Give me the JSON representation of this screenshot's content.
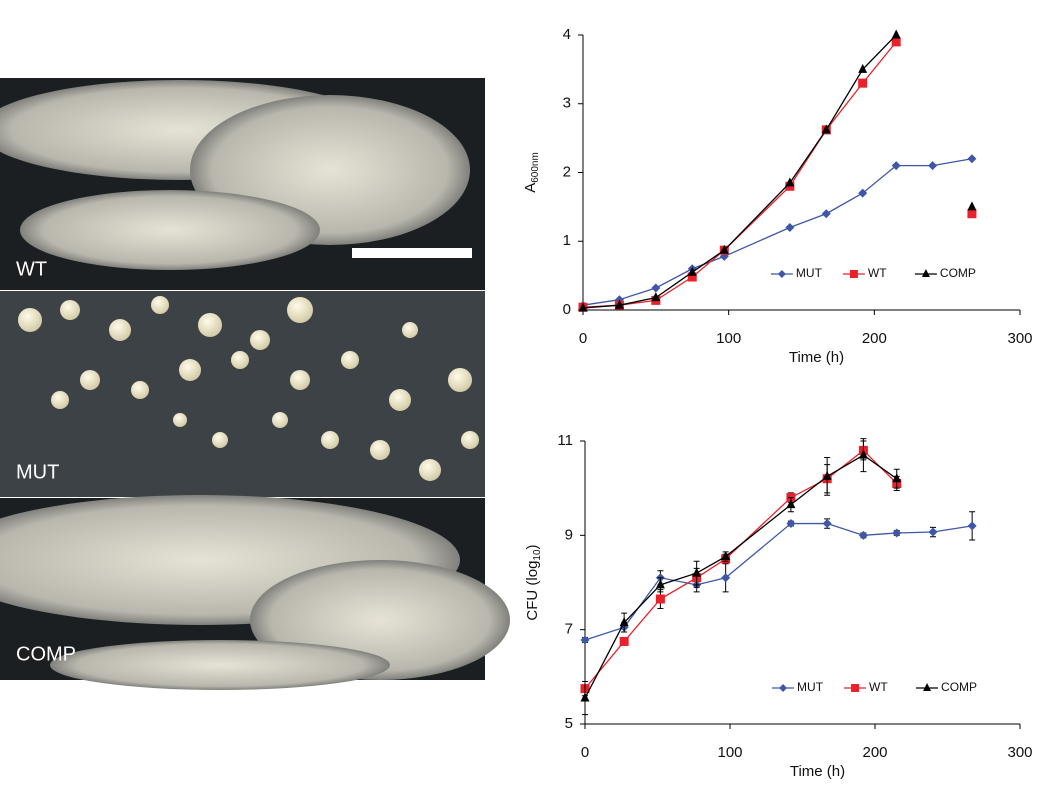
{
  "panel_labels": [
    "WT",
    "MUT",
    "COMP"
  ],
  "chart_data": [
    {
      "type": "line",
      "x_label": "Time (h)",
      "y_label_parts": [
        "A",
        "600nm"
      ],
      "x": [
        0,
        25,
        50,
        75,
        97,
        142,
        167,
        192,
        215,
        240,
        267
      ],
      "xlim": [
        0,
        300
      ],
      "xticks": [
        0,
        100,
        200,
        300
      ],
      "ylim": [
        0,
        4
      ],
      "yticks": [
        0,
        1,
        2,
        3,
        4
      ],
      "grid": false,
      "legend": "lower right",
      "series": [
        {
          "name": "MUT",
          "color": "#3f57a8",
          "marker": "diamond",
          "values": [
            0.07,
            0.15,
            0.32,
            0.6,
            0.78,
            1.2,
            1.4,
            1.7,
            2.1,
            2.1,
            2.2
          ]
        },
        {
          "name": "WT",
          "color": "#e8212b",
          "marker": "square",
          "values": [
            0.04,
            0.07,
            0.14,
            0.48,
            0.87,
            1.8,
            2.62,
            3.3,
            3.9,
            null,
            1.4
          ]
        },
        {
          "name": "COMP",
          "color": "#000000",
          "marker": "triangle",
          "values": [
            0.03,
            0.07,
            0.18,
            0.55,
            0.87,
            1.85,
            2.62,
            3.5,
            4.0,
            null,
            1.5
          ]
        }
      ]
    },
    {
      "type": "line",
      "x_label": "Time (h)",
      "y_label_parts": [
        "CFU (log",
        "10",
        ")"
      ],
      "x": [
        0,
        27,
        52,
        77,
        97,
        142,
        167,
        192,
        215,
        240,
        267
      ],
      "xlim": [
        0,
        300
      ],
      "xticks": [
        0,
        100,
        200,
        300
      ],
      "ylim": [
        5,
        11
      ],
      "yticks": [
        5,
        7,
        9,
        11
      ],
      "grid": false,
      "legend": "lower right",
      "series": [
        {
          "name": "MUT",
          "color": "#3f57a8",
          "marker": "diamond",
          "values": [
            6.78,
            7.05,
            8.1,
            7.95,
            8.1,
            9.25,
            9.25,
            9.0,
            9.05,
            9.07,
            9.2
          ],
          "errors": [
            0.05,
            0.1,
            0.15,
            0.15,
            0.3,
            0.05,
            0.1,
            0.05,
            0.05,
            0.1,
            0.3
          ]
        },
        {
          "name": "WT",
          "color": "#e8212b",
          "marker": "square",
          "values": [
            5.75,
            6.75,
            7.65,
            8.1,
            8.5,
            9.8,
            10.2,
            10.8,
            10.1,
            null,
            null
          ],
          "errors": [
            0.15,
            0.05,
            0.2,
            0.2,
            0.1,
            0.1,
            0.3,
            0.2,
            0.15,
            null,
            null
          ]
        },
        {
          "name": "COMP",
          "color": "#000000",
          "marker": "triangle",
          "values": [
            5.55,
            7.15,
            7.95,
            8.2,
            8.55,
            9.65,
            10.25,
            10.7,
            10.2,
            null,
            null
          ],
          "errors": [
            0.35,
            0.2,
            0.15,
            0.25,
            0.1,
            0.15,
            0.4,
            0.35,
            0.2,
            null,
            null
          ]
        }
      ]
    }
  ]
}
